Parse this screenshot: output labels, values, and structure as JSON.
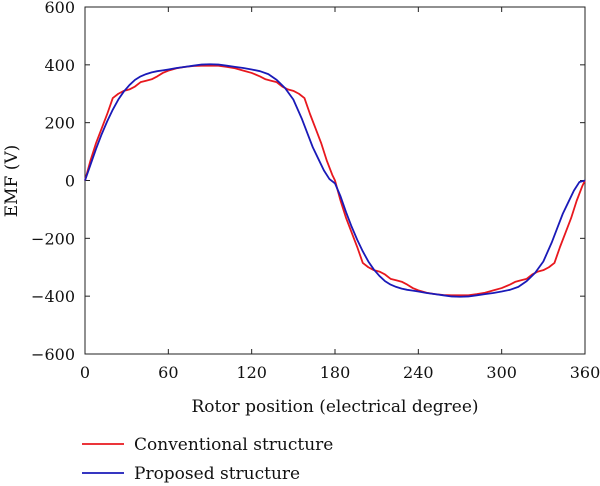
{
  "chart_data": {
    "type": "line",
    "xlabel": "Rotor position (electrical degree)",
    "ylabel": "EMF (V)",
    "xlim": [
      0,
      360
    ],
    "ylim": [
      -600,
      600
    ],
    "xticks": [
      0,
      60,
      120,
      180,
      240,
      300,
      360
    ],
    "yticks": [
      600,
      400,
      200,
      0,
      -200,
      -400,
      -600
    ],
    "xtick_labels": [
      "0",
      "60",
      "120",
      "180",
      "240",
      "300",
      "360"
    ],
    "ytick_labels": [
      "600",
      "400",
      "200",
      "0",
      "−200",
      "−400",
      "−600"
    ],
    "grid": false,
    "legend_position": "bottom-left, below plot",
    "series": [
      {
        "name": "Conventional structure",
        "color": "#e8181e",
        "x": [
          0,
          4,
          8,
          12,
          16,
          20,
          24,
          28,
          32,
          36,
          40,
          44,
          48,
          52,
          56,
          60,
          66,
          72,
          78,
          84,
          90,
          96,
          102,
          108,
          114,
          120,
          126,
          130,
          134,
          138,
          142,
          146,
          150,
          154,
          158,
          162,
          166,
          170,
          174,
          178,
          180,
          184,
          188,
          192,
          196,
          200,
          204,
          208,
          212,
          216,
          220,
          224,
          228,
          232,
          236,
          240,
          246,
          252,
          258,
          264,
          270,
          276,
          282,
          288,
          294,
          300,
          306,
          310,
          314,
          318,
          322,
          326,
          330,
          334,
          338,
          342,
          346,
          350,
          354,
          358,
          360
        ],
        "y": [
          0,
          70,
          130,
          180,
          230,
          285,
          300,
          310,
          315,
          325,
          340,
          345,
          350,
          360,
          372,
          380,
          388,
          393,
          396,
          397,
          397,
          397,
          393,
          388,
          380,
          372,
          360,
          350,
          345,
          340,
          325,
          315,
          310,
          300,
          285,
          230,
          180,
          130,
          70,
          20,
          0,
          -70,
          -130,
          -180,
          -230,
          -285,
          -300,
          -310,
          -315,
          -325,
          -340,
          -345,
          -350,
          -360,
          -372,
          -380,
          -388,
          -393,
          -396,
          -397,
          -397,
          -397,
          -393,
          -388,
          -380,
          -372,
          -360,
          -350,
          -345,
          -340,
          -325,
          -315,
          -310,
          -300,
          -285,
          -230,
          -180,
          -130,
          -70,
          -20,
          0
        ]
      },
      {
        "name": "Proposed structure",
        "color": "#1a1ab8",
        "x": [
          0,
          4,
          8,
          12,
          16,
          20,
          24,
          28,
          32,
          36,
          40,
          44,
          48,
          52,
          56,
          60,
          66,
          72,
          78,
          84,
          90,
          96,
          102,
          108,
          114,
          120,
          126,
          132,
          138,
          144,
          150,
          156,
          160,
          164,
          168,
          172,
          176,
          180,
          184,
          188,
          192,
          196,
          200,
          204,
          208,
          212,
          216,
          220,
          224,
          228,
          232,
          236,
          240,
          246,
          252,
          258,
          264,
          270,
          276,
          282,
          288,
          294,
          300,
          306,
          312,
          318,
          324,
          330,
          336,
          340,
          344,
          348,
          352,
          356,
          360
        ],
        "y": [
          0,
          55,
          110,
          160,
          205,
          245,
          280,
          308,
          330,
          348,
          360,
          368,
          374,
          378,
          381,
          384,
          389,
          393,
          397,
          401,
          402,
          401,
          397,
          393,
          389,
          384,
          378,
          368,
          348,
          320,
          280,
          215,
          165,
          115,
          75,
          35,
          5,
          -10,
          -55,
          -110,
          -160,
          -205,
          -245,
          -280,
          -308,
          -330,
          -348,
          -360,
          -368,
          -374,
          -378,
          -381,
          -384,
          -389,
          -393,
          -397,
          -401,
          -402,
          -401,
          -397,
          -393,
          -389,
          -384,
          -378,
          -368,
          -348,
          -320,
          -280,
          -215,
          -165,
          -115,
          -75,
          -35,
          -5,
          0
        ]
      }
    ]
  }
}
